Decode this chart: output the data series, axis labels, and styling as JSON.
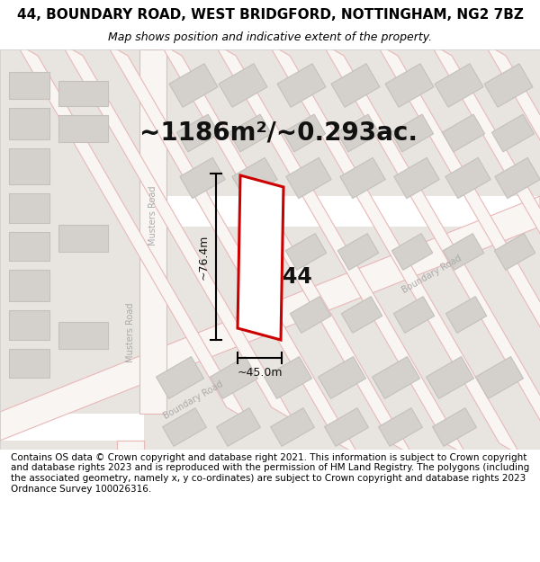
{
  "title": "44, BOUNDARY ROAD, WEST BRIDGFORD, NOTTINGHAM, NG2 7BZ",
  "subtitle": "Map shows position and indicative extent of the property.",
  "area_text": "~1186m²/~0.293ac.",
  "number_label": "44",
  "dim_width": "~45.0m",
  "dim_height": "~76.4m",
  "footer_text": "Contains OS data © Crown copyright and database right 2021. This information is subject to Crown copyright and database rights 2023 and is reproduced with the permission of HM Land Registry. The polygons (including the associated geometry, namely x, y co-ordinates) are subject to Crown copyright and database rights 2023 Ordnance Survey 100026316.",
  "map_bg": "#f0ede8",
  "block_fill": "#e8e5e0",
  "block_edge": "#d8c8c8",
  "bldg_fill": "#d4d1cc",
  "bldg_edge": "#c4c1bc",
  "road_center_fill": "#f8f5f2",
  "road_edge_color": "#e8b8b8",
  "highlight_stroke": "#cc0000",
  "highlight_fill": "#ffffff",
  "tan_fill": "#e8ddd0",
  "road_label_color": "#aaaaaa",
  "title_fontsize": 11,
  "subtitle_fontsize": 9,
  "area_fontsize": 20,
  "number_fontsize": 17,
  "dim_fontsize": 9,
  "footer_fontsize": 7.5,
  "road_label_fontsize": 7
}
